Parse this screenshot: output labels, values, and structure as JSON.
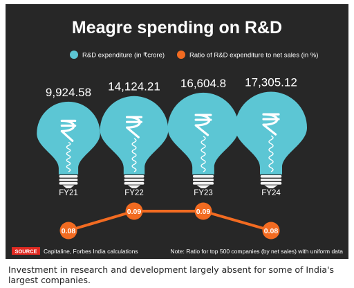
{
  "chart_data": {
    "type": "bar",
    "title": "Meagre spending on R&D",
    "categories": [
      "FY21",
      "FY22",
      "FY23",
      "FY24"
    ],
    "series": [
      {
        "name": "R&D expenditure (in ₹crore)",
        "marker": "bulb",
        "color": "#5cc6d4",
        "values": [
          9924.58,
          14124.21,
          16604.8,
          17305.12
        ],
        "labels": [
          "9,924.58",
          "14,124.21",
          "16,604.8",
          "17,305.12"
        ]
      },
      {
        "name": "Ratio of R&D expenditure to net sales (in %)",
        "marker": "line",
        "color": "#f26b21",
        "values": [
          0.08,
          0.09,
          0.09,
          0.08
        ],
        "labels": [
          "0.08",
          "0.09",
          "0.09",
          "0.08"
        ]
      }
    ],
    "legend_position": "top-center",
    "grid": false,
    "background_color": "#272727",
    "text_color": "#ffffff"
  },
  "footer": {
    "source_tag": "SOURCE",
    "source_text": "Capitaline, Forbes India calculations",
    "note": "Note: Ratio for top 500 companies (by net sales) with uniform data"
  },
  "caption": "Investment in research and development largely absent for some of India's largest companies.",
  "icons": {
    "bulb": "lightbulb-icon",
    "currency": "rupee-icon"
  }
}
